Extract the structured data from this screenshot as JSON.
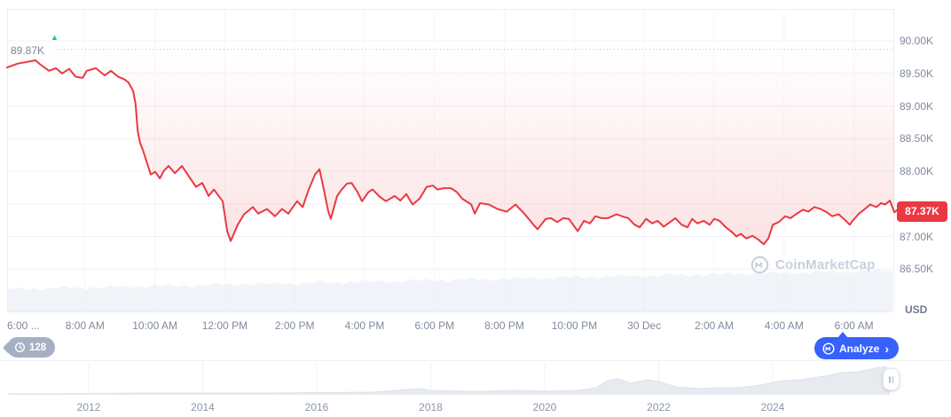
{
  "high_marker": {
    "label": "89.87K",
    "price": 89.87,
    "direction_icon": "up-triangle"
  },
  "price_badge": {
    "label": "87.37K",
    "price": 87.37
  },
  "y_axis": {
    "unit": "USD",
    "labels": [
      {
        "price": 90.0,
        "label": "90.00K"
      },
      {
        "price": 89.5,
        "label": "89.50K"
      },
      {
        "price": 89.0,
        "label": "89.00K"
      },
      {
        "price": 88.5,
        "label": "88.50K"
      },
      {
        "price": 88.0,
        "label": "88.00K"
      },
      {
        "price": 87.0,
        "label": "87.00K"
      },
      {
        "price": 86.5,
        "label": "86.50K"
      }
    ],
    "gridline_prices": [
      90.0,
      89.5,
      89.0,
      88.5,
      88.0,
      87.5,
      87.0,
      86.5
    ]
  },
  "x_axis": {
    "ticks": [
      {
        "t": 6,
        "label": "6:00 ..."
      },
      {
        "t": 8,
        "label": "8:00 AM"
      },
      {
        "t": 10,
        "label": "10:00 AM"
      },
      {
        "t": 12,
        "label": "12:00 PM"
      },
      {
        "t": 14,
        "label": "2:00 PM"
      },
      {
        "t": 16,
        "label": "4:00 PM"
      },
      {
        "t": 18,
        "label": "6:00 PM"
      },
      {
        "t": 20,
        "label": "8:00 PM"
      },
      {
        "t": 22,
        "label": "10:00 PM"
      },
      {
        "t": 24,
        "label": "30 Dec"
      },
      {
        "t": 26,
        "label": "2:00 AM"
      },
      {
        "t": 28,
        "label": "4:00 AM"
      },
      {
        "t": 30,
        "label": "6:00 AM"
      }
    ]
  },
  "toolbar": {
    "history_count": "128",
    "analyze_label": "Analyze",
    "analyze_chevron": "›"
  },
  "watermark": {
    "text": "CoinMarketCap"
  },
  "timeline": {
    "year_labels": [
      {
        "year": 2012,
        "label": "2012"
      },
      {
        "year": 2014,
        "label": "2014"
      },
      {
        "year": 2016,
        "label": "2016"
      },
      {
        "year": 2018,
        "label": "2018"
      },
      {
        "year": 2020,
        "label": "2020"
      },
      {
        "year": 2022,
        "label": "2022"
      },
      {
        "year": 2024,
        "label": "2024"
      }
    ]
  },
  "colors": {
    "red": "#ea3943",
    "green": "#16c784",
    "blue": "#3861fb",
    "grid": "#eff2f5",
    "grid_faint": "#f5f7fa",
    "axis_text": "#808a9d",
    "dotted": "#b9c1ce",
    "volume": "#e9edf3",
    "timeline_fill": "#e7ebf0",
    "timeline_edge": "#dde3ea",
    "badge_gray": "#a5b0c3"
  },
  "chart_data": {
    "type": "line",
    "title": "",
    "unit": "K USD",
    "x_unit": "hour of day (6 = 6:00 AM Dec 29, 24 = 30 Dec midnight, 30 = 6:00 AM Dec 30)",
    "ylim": [
      86.5,
      90.0
    ],
    "xlim": [
      5.57,
      30.84
    ],
    "grid": true,
    "legend": "none",
    "high_24h": 89.87,
    "last_price": 87.37,
    "points": [
      [
        5.57,
        89.59
      ],
      [
        5.87,
        89.65
      ],
      [
        6.18,
        89.68
      ],
      [
        6.38,
        89.7
      ],
      [
        6.51,
        89.64
      ],
      [
        6.76,
        89.54
      ],
      [
        6.96,
        89.58
      ],
      [
        7.14,
        89.5
      ],
      [
        7.34,
        89.57
      ],
      [
        7.52,
        89.45
      ],
      [
        7.72,
        89.43
      ],
      [
        7.84,
        89.54
      ],
      [
        8.1,
        89.58
      ],
      [
        8.35,
        89.47
      ],
      [
        8.53,
        89.54
      ],
      [
        8.73,
        89.45
      ],
      [
        8.91,
        89.41
      ],
      [
        9.03,
        89.36
      ],
      [
        9.16,
        89.23
      ],
      [
        9.23,
        89.03
      ],
      [
        9.29,
        88.62
      ],
      [
        9.36,
        88.43
      ],
      [
        9.44,
        88.32
      ],
      [
        9.56,
        88.12
      ],
      [
        9.66,
        87.95
      ],
      [
        9.79,
        87.99
      ],
      [
        9.92,
        87.89
      ],
      [
        10.04,
        88.01
      ],
      [
        10.17,
        88.08
      ],
      [
        10.35,
        87.97
      ],
      [
        10.55,
        88.08
      ],
      [
        10.75,
        87.92
      ],
      [
        10.95,
        87.76
      ],
      [
        11.13,
        87.82
      ],
      [
        11.31,
        87.62
      ],
      [
        11.46,
        87.72
      ],
      [
        11.71,
        87.54
      ],
      [
        11.84,
        87.08
      ],
      [
        11.94,
        86.93
      ],
      [
        12.14,
        87.18
      ],
      [
        12.32,
        87.34
      ],
      [
        12.57,
        87.45
      ],
      [
        12.72,
        87.35
      ],
      [
        12.97,
        87.42
      ],
      [
        13.2,
        87.31
      ],
      [
        13.4,
        87.42
      ],
      [
        13.58,
        87.35
      ],
      [
        13.83,
        87.54
      ],
      [
        13.99,
        87.45
      ],
      [
        14.16,
        87.72
      ],
      [
        14.34,
        87.95
      ],
      [
        14.47,
        88.03
      ],
      [
        14.59,
        87.72
      ],
      [
        14.72,
        87.38
      ],
      [
        14.79,
        87.27
      ],
      [
        14.97,
        87.62
      ],
      [
        15.1,
        87.72
      ],
      [
        15.25,
        87.81
      ],
      [
        15.38,
        87.82
      ],
      [
        15.55,
        87.68
      ],
      [
        15.68,
        87.54
      ],
      [
        15.86,
        87.68
      ],
      [
        15.98,
        87.72
      ],
      [
        16.18,
        87.61
      ],
      [
        16.36,
        87.54
      ],
      [
        16.61,
        87.62
      ],
      [
        16.77,
        87.55
      ],
      [
        16.94,
        87.65
      ],
      [
        17.12,
        87.49
      ],
      [
        17.32,
        87.58
      ],
      [
        17.52,
        87.76
      ],
      [
        17.7,
        87.78
      ],
      [
        17.83,
        87.72
      ],
      [
        18.0,
        87.74
      ],
      [
        18.21,
        87.74
      ],
      [
        18.38,
        87.68
      ],
      [
        18.53,
        87.58
      ],
      [
        18.79,
        87.49
      ],
      [
        18.89,
        87.35
      ],
      [
        19.04,
        87.51
      ],
      [
        19.29,
        87.49
      ],
      [
        19.54,
        87.42
      ],
      [
        19.8,
        87.38
      ],
      [
        20.05,
        87.49
      ],
      [
        20.3,
        87.35
      ],
      [
        20.56,
        87.18
      ],
      [
        20.68,
        87.11
      ],
      [
        20.91,
        87.27
      ],
      [
        21.06,
        87.28
      ],
      [
        21.24,
        87.22
      ],
      [
        21.41,
        87.28
      ],
      [
        21.57,
        87.27
      ],
      [
        21.82,
        87.08
      ],
      [
        22.0,
        87.24
      ],
      [
        22.17,
        87.2
      ],
      [
        22.33,
        87.31
      ],
      [
        22.5,
        87.28
      ],
      [
        22.68,
        87.28
      ],
      [
        22.93,
        87.34
      ],
      [
        23.08,
        87.31
      ],
      [
        23.26,
        87.28
      ],
      [
        23.44,
        87.18
      ],
      [
        23.59,
        87.14
      ],
      [
        23.77,
        87.27
      ],
      [
        23.94,
        87.2
      ],
      [
        24.1,
        87.24
      ],
      [
        24.27,
        87.15
      ],
      [
        24.45,
        87.22
      ],
      [
        24.6,
        87.28
      ],
      [
        24.78,
        87.18
      ],
      [
        24.95,
        87.14
      ],
      [
        25.08,
        87.27
      ],
      [
        25.23,
        87.2
      ],
      [
        25.41,
        87.24
      ],
      [
        25.58,
        87.18
      ],
      [
        25.71,
        87.27
      ],
      [
        25.86,
        87.24
      ],
      [
        26.04,
        87.14
      ],
      [
        26.21,
        87.07
      ],
      [
        26.34,
        87.0
      ],
      [
        26.47,
        87.04
      ],
      [
        26.62,
        86.97
      ],
      [
        26.8,
        87.01
      ],
      [
        26.97,
        86.95
      ],
      [
        27.12,
        86.88
      ],
      [
        27.25,
        86.97
      ],
      [
        27.38,
        87.18
      ],
      [
        27.55,
        87.22
      ],
      [
        27.73,
        87.31
      ],
      [
        27.88,
        87.28
      ],
      [
        28.06,
        87.35
      ],
      [
        28.24,
        87.41
      ],
      [
        28.39,
        87.38
      ],
      [
        28.56,
        87.45
      ],
      [
        28.74,
        87.42
      ],
      [
        28.89,
        87.38
      ],
      [
        29.07,
        87.31
      ],
      [
        29.25,
        87.34
      ],
      [
        29.4,
        87.27
      ],
      [
        29.57,
        87.18
      ],
      [
        29.65,
        87.24
      ],
      [
        29.83,
        87.35
      ],
      [
        30.0,
        87.42
      ],
      [
        30.15,
        87.49
      ],
      [
        30.33,
        87.45
      ],
      [
        30.46,
        87.51
      ],
      [
        30.58,
        87.49
      ],
      [
        30.71,
        87.55
      ],
      [
        30.84,
        87.37
      ]
    ],
    "volume_profile": {
      "description": "dense thin bars, height ramps left to right",
      "start_height": 26,
      "end_height": 47
    },
    "timeline_overview": {
      "type": "area",
      "x_unit": "year",
      "points": [
        [
          2010.6,
          1
        ],
        [
          2012,
          1.5
        ],
        [
          2013,
          2
        ],
        [
          2014,
          2
        ],
        [
          2015,
          2
        ],
        [
          2016,
          2.5
        ],
        [
          2017,
          3
        ],
        [
          2017.8,
          7
        ],
        [
          2018,
          5
        ],
        [
          2018.6,
          4
        ],
        [
          2019,
          4
        ],
        [
          2019.5,
          5
        ],
        [
          2020,
          4
        ],
        [
          2020.6,
          5
        ],
        [
          2020.9,
          8
        ],
        [
          2021.1,
          16
        ],
        [
          2021.3,
          18
        ],
        [
          2021.5,
          13
        ],
        [
          2021.8,
          17
        ],
        [
          2022,
          15
        ],
        [
          2022.3,
          9
        ],
        [
          2022.7,
          7
        ],
        [
          2023,
          8
        ],
        [
          2023.4,
          8
        ],
        [
          2023.8,
          11
        ],
        [
          2024,
          14
        ],
        [
          2024.2,
          16
        ],
        [
          2024.5,
          17
        ],
        [
          2024.8,
          20
        ],
        [
          2025,
          22
        ],
        [
          2025.2,
          25
        ],
        [
          2025.5,
          26
        ],
        [
          2025.8,
          30
        ],
        [
          2026,
          32
        ]
      ]
    }
  }
}
